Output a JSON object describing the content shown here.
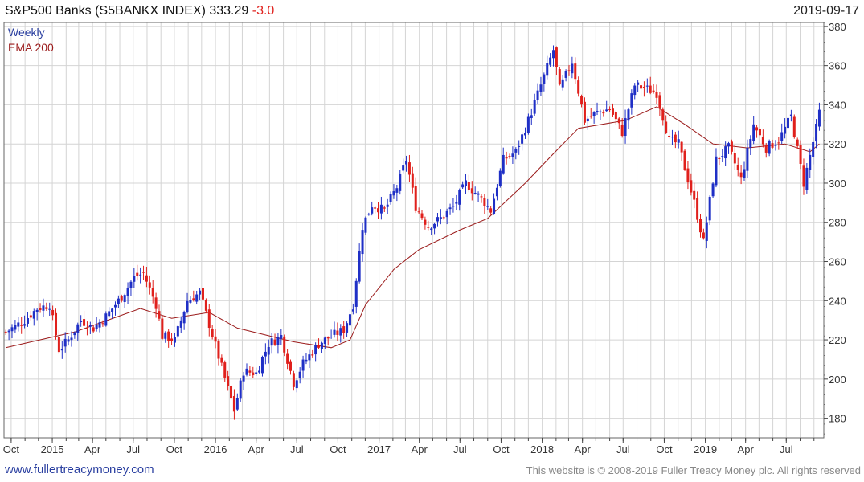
{
  "header": {
    "name": "S&P500 Banks",
    "ticker": "(S5BANKX INDEX)",
    "last": "333.29",
    "change": "-3.0",
    "date": "2019-09-17"
  },
  "legend": {
    "weekly": "Weekly",
    "ema": "EMA 200"
  },
  "footer": {
    "url": "www.fullertreacymoney.com",
    "copyright": "This website is © 2008-2019 Fuller Treacy Money plc. All rights reserved"
  },
  "colors": {
    "up": "#1f2fc6",
    "down": "#e0201c",
    "ema": "#9b1b1b",
    "grid": "#d4d4d4",
    "axis": "#444444"
  },
  "chart_data": {
    "type": "candlestick",
    "frequency": "weekly",
    "ylim": [
      170,
      382
    ],
    "yticks": [
      180,
      200,
      220,
      240,
      260,
      280,
      300,
      320,
      340,
      360,
      380
    ],
    "xlim": [
      "2014-09-15",
      "2019-09-23"
    ],
    "xticks": [
      {
        "label": "Oct",
        "date": "2014-10-01"
      },
      {
        "label": "2015",
        "date": "2015-01-01"
      },
      {
        "label": "Apr",
        "date": "2015-04-01"
      },
      {
        "label": "Jul",
        "date": "2015-07-01"
      },
      {
        "label": "Oct",
        "date": "2015-10-01"
      },
      {
        "label": "2016",
        "date": "2016-01-01"
      },
      {
        "label": "Apr",
        "date": "2016-04-01"
      },
      {
        "label": "Jul",
        "date": "2016-07-01"
      },
      {
        "label": "Oct",
        "date": "2016-10-01"
      },
      {
        "label": "2017",
        "date": "2017-01-01"
      },
      {
        "label": "Apr",
        "date": "2017-04-01"
      },
      {
        "label": "Jul",
        "date": "2017-07-01"
      },
      {
        "label": "Oct",
        "date": "2017-10-01"
      },
      {
        "label": "2018",
        "date": "2018-01-01"
      },
      {
        "label": "Apr",
        "date": "2018-04-01"
      },
      {
        "label": "Jul",
        "date": "2018-07-01"
      },
      {
        "label": "Oct",
        "date": "2018-10-01"
      },
      {
        "label": "2019",
        "date": "2019-01-01"
      },
      {
        "label": "Apr",
        "date": "2019-04-01"
      },
      {
        "label": "Jul",
        "date": "2019-07-01"
      }
    ],
    "weekly_closes": [
      {
        "date": "2014-09-19",
        "close": 224
      },
      {
        "date": "2014-10-31",
        "close": 230
      },
      {
        "date": "2014-11-28",
        "close": 236
      },
      {
        "date": "2014-12-26",
        "close": 238
      },
      {
        "date": "2015-01-16",
        "close": 215
      },
      {
        "date": "2015-02-06",
        "close": 220
      },
      {
        "date": "2015-03-06",
        "close": 230
      },
      {
        "date": "2015-04-03",
        "close": 226
      },
      {
        "date": "2015-05-01",
        "close": 232
      },
      {
        "date": "2015-06-05",
        "close": 242
      },
      {
        "date": "2015-07-03",
        "close": 252
      },
      {
        "date": "2015-07-24",
        "close": 254
      },
      {
        "date": "2015-08-21",
        "close": 238
      },
      {
        "date": "2015-09-04",
        "close": 222
      },
      {
        "date": "2015-10-02",
        "close": 220
      },
      {
        "date": "2015-10-30",
        "close": 240
      },
      {
        "date": "2015-11-27",
        "close": 244
      },
      {
        "date": "2015-12-18",
        "close": 228
      },
      {
        "date": "2016-01-15",
        "close": 206
      },
      {
        "date": "2016-02-12",
        "close": 184
      },
      {
        "date": "2016-03-04",
        "close": 204
      },
      {
        "date": "2016-04-01",
        "close": 203
      },
      {
        "date": "2016-04-29",
        "close": 218
      },
      {
        "date": "2016-05-27",
        "close": 222
      },
      {
        "date": "2016-06-24",
        "close": 198
      },
      {
        "date": "2016-07-15",
        "close": 208
      },
      {
        "date": "2016-08-19",
        "close": 218
      },
      {
        "date": "2016-09-16",
        "close": 222
      },
      {
        "date": "2016-10-14",
        "close": 225
      },
      {
        "date": "2016-11-04",
        "close": 238
      },
      {
        "date": "2016-11-25",
        "close": 278
      },
      {
        "date": "2016-12-16",
        "close": 289
      },
      {
        "date": "2017-01-13",
        "close": 286
      },
      {
        "date": "2017-02-10",
        "close": 298
      },
      {
        "date": "2017-03-03",
        "close": 312
      },
      {
        "date": "2017-03-24",
        "close": 288
      },
      {
        "date": "2017-04-21",
        "close": 278
      },
      {
        "date": "2017-05-19",
        "close": 282
      },
      {
        "date": "2017-06-16",
        "close": 288
      },
      {
        "date": "2017-07-14",
        "close": 300
      },
      {
        "date": "2017-08-18",
        "close": 292
      },
      {
        "date": "2017-09-08",
        "close": 286
      },
      {
        "date": "2017-10-06",
        "close": 312
      },
      {
        "date": "2017-11-03",
        "close": 316
      },
      {
        "date": "2017-12-01",
        "close": 332
      },
      {
        "date": "2017-12-29",
        "close": 350
      },
      {
        "date": "2018-01-26",
        "close": 368
      },
      {
        "date": "2018-02-09",
        "close": 348
      },
      {
        "date": "2018-03-09",
        "close": 362
      },
      {
        "date": "2018-04-06",
        "close": 332
      },
      {
        "date": "2018-05-04",
        "close": 336
      },
      {
        "date": "2018-06-01",
        "close": 338
      },
      {
        "date": "2018-06-29",
        "close": 326
      },
      {
        "date": "2018-07-27",
        "close": 350
      },
      {
        "date": "2018-08-24",
        "close": 348
      },
      {
        "date": "2018-09-14",
        "close": 346
      },
      {
        "date": "2018-10-12",
        "close": 322
      },
      {
        "date": "2018-11-02",
        "close": 320
      },
      {
        "date": "2018-12-07",
        "close": 290
      },
      {
        "date": "2018-12-28",
        "close": 270
      },
      {
        "date": "2019-01-25",
        "close": 312
      },
      {
        "date": "2019-02-22",
        "close": 318
      },
      {
        "date": "2019-03-22",
        "close": 302
      },
      {
        "date": "2019-04-19",
        "close": 330
      },
      {
        "date": "2019-05-17",
        "close": 318
      },
      {
        "date": "2019-06-14",
        "close": 322
      },
      {
        "date": "2019-07-12",
        "close": 334
      },
      {
        "date": "2019-08-09",
        "close": 300
      },
      {
        "date": "2019-09-06",
        "close": 328
      },
      {
        "date": "2019-09-13",
        "close": 336
      }
    ],
    "ema200": [
      {
        "date": "2014-09-19",
        "value": 216
      },
      {
        "date": "2015-02-20",
        "value": 224
      },
      {
        "date": "2015-07-17",
        "value": 236
      },
      {
        "date": "2015-09-25",
        "value": 231
      },
      {
        "date": "2015-12-18",
        "value": 234
      },
      {
        "date": "2016-02-19",
        "value": 226
      },
      {
        "date": "2016-06-24",
        "value": 219
      },
      {
        "date": "2016-09-16",
        "value": 216
      },
      {
        "date": "2016-10-28",
        "value": 220
      },
      {
        "date": "2016-12-02",
        "value": 238
      },
      {
        "date": "2017-02-03",
        "value": 256
      },
      {
        "date": "2017-03-31",
        "value": 266
      },
      {
        "date": "2017-06-30",
        "value": 276
      },
      {
        "date": "2017-09-01",
        "value": 282
      },
      {
        "date": "2017-11-24",
        "value": 300
      },
      {
        "date": "2018-01-26",
        "value": 315
      },
      {
        "date": "2018-03-23",
        "value": 328
      },
      {
        "date": "2018-07-06",
        "value": 332
      },
      {
        "date": "2018-09-14",
        "value": 339
      },
      {
        "date": "2018-11-16",
        "value": 330
      },
      {
        "date": "2019-01-18",
        "value": 320
      },
      {
        "date": "2019-04-05",
        "value": 318
      },
      {
        "date": "2019-06-28",
        "value": 320
      },
      {
        "date": "2019-08-23",
        "value": 316
      },
      {
        "date": "2019-09-13",
        "value": 320
      }
    ]
  }
}
